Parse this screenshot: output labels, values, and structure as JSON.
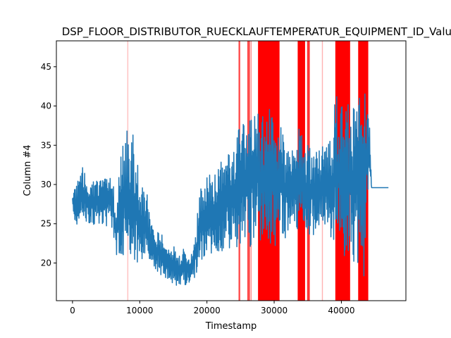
{
  "chart_data": {
    "type": "line",
    "title": "DSP_FLOOR_DISTRIBUTOR_RUECKLAUFTEMPERATUR_EQUIPMENT_ID_Value",
    "xlabel": "Timestamp",
    "ylabel": "Column #4",
    "xlim": [
      -2400,
      49600
    ],
    "ylim": [
      15.2,
      48.3
    ],
    "x_ticks": [
      0,
      10000,
      20000,
      30000,
      40000
    ],
    "x_tick_labels": [
      "0",
      "10000",
      "20000",
      "30000",
      "40000"
    ],
    "y_ticks": [
      20,
      25,
      30,
      35,
      40,
      45
    ],
    "y_tick_labels": [
      "20",
      "25",
      "30",
      "35",
      "40",
      "45"
    ],
    "grid": false,
    "series": [
      {
        "color": "#1f77b4",
        "x": [
          0,
          500,
          1000,
          1500,
          2000,
          2500,
          3000,
          3500,
          4000,
          4500,
          5000,
          5500,
          6000,
          6500,
          7000,
          7500,
          8000,
          8500,
          9000,
          9500,
          10000,
          10500,
          11000,
          11500,
          12000,
          12500,
          13000,
          13500,
          14000,
          14500,
          15000,
          15500,
          16000,
          16500,
          17000,
          17500,
          18000,
          18500,
          19000,
          19500,
          20000,
          20500,
          21000,
          21500,
          22000,
          22500,
          23000,
          23500,
          24000,
          24500,
          25000,
          25500,
          26000,
          26500,
          27000,
          27500,
          28000,
          28500,
          29000,
          29500,
          30000,
          30500,
          31000,
          31500,
          32000,
          32500,
          33000,
          33500,
          34000,
          34500,
          35000,
          35500,
          36000,
          36500,
          37000,
          37500,
          38000,
          38500,
          39000,
          39500,
          40000,
          40500,
          41000,
          41500,
          42000,
          42500,
          43000,
          43500,
          44000,
          44500,
          45000,
          45500,
          46000,
          46500,
          47000
        ],
        "low": [
          25.5,
          25,
          24.8,
          24.5,
          25.2,
          24.8,
          25,
          24.6,
          25,
          24.8,
          24.5,
          25,
          24,
          20.5,
          20.2,
          21,
          20.5,
          19.5,
          20,
          19.8,
          19,
          20.5,
          20,
          19.2,
          19.5,
          19,
          18.5,
          18.3,
          17.5,
          17.2,
          17.5,
          17,
          17.2,
          17,
          17.3,
          17.2,
          17.8,
          18,
          19.5,
          19.8,
          20.5,
          20.5,
          21,
          21.2,
          21.5,
          21.5,
          22,
          21.8,
          22,
          21.5,
          22.5,
          23,
          22,
          21.5,
          23,
          22.5,
          22,
          22.5,
          22,
          22.5,
          21.5,
          22,
          22.5,
          23,
          23.5,
          24,
          24,
          23.5,
          24,
          23.5,
          23,
          23.5,
          23.5,
          23.5,
          24,
          23.5,
          24,
          23,
          22,
          21.5,
          21,
          20.5,
          20.5,
          20,
          19.5,
          19,
          18,
          17.5,
          29.6,
          29.6,
          29.6,
          29.6,
          29.6,
          29.6,
          29.6
        ],
        "high": [
          30.5,
          30,
          31,
          32.2,
          31,
          30.5,
          30.8,
          31,
          30.5,
          31,
          30.8,
          31,
          30.5,
          27,
          33,
          35.5,
          37.5,
          37,
          36.5,
          34,
          30.5,
          29.5,
          31,
          26,
          25,
          23.5,
          24.5,
          23,
          22.5,
          23,
          22.5,
          21.5,
          21,
          22,
          21.5,
          21,
          23,
          26,
          29.5,
          30,
          31.5,
          32,
          30,
          33.5,
          33,
          33,
          34,
          34.5,
          36,
          37.5,
          37,
          38,
          37.8,
          38.5,
          39,
          40,
          39,
          38.5,
          39,
          41,
          38,
          37,
          37.5,
          36,
          35.5,
          35,
          34,
          37.5,
          38,
          36,
          35.5,
          35,
          34,
          34.5,
          35,
          36.5,
          35,
          36,
          41,
          41.5,
          40,
          40,
          40.5,
          41,
          41,
          42,
          42.5,
          42.5,
          42.8,
          29.6,
          29.6,
          29.6,
          29.6,
          29.6,
          29.6
        ]
      }
    ],
    "anomaly_spans": [
      {
        "start": 8150,
        "end": 8300,
        "opacity": 0.25
      },
      {
        "start": 24700,
        "end": 24950,
        "opacity": 0.7
      },
      {
        "start": 26000,
        "end": 26400,
        "opacity": 0.7
      },
      {
        "start": 26500,
        "end": 26650,
        "opacity": 0.45
      },
      {
        "start": 27600,
        "end": 30800,
        "opacity": 1.0
      },
      {
        "start": 33500,
        "end": 34600,
        "opacity": 1.0
      },
      {
        "start": 34900,
        "end": 35300,
        "opacity": 0.8
      },
      {
        "start": 37100,
        "end": 37250,
        "opacity": 0.3
      },
      {
        "start": 39100,
        "end": 41300,
        "opacity": 1.0
      },
      {
        "start": 42500,
        "end": 44000,
        "opacity": 1.0
      }
    ],
    "anomaly_color": "#ff0000"
  }
}
